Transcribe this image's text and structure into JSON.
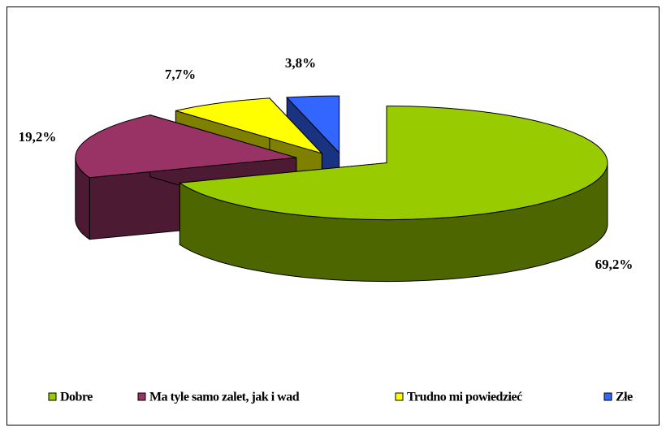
{
  "chart_data": {
    "type": "pie3d",
    "categories": [
      "Dobre",
      "Ma tyle samo zalet, jak i wad",
      "Trudno mi powiedzieć",
      "Złe"
    ],
    "values": [
      69.2,
      19.2,
      7.7,
      3.8
    ],
    "value_labels": [
      "69,2%",
      "19,2%",
      "7,7%",
      "3,8%"
    ],
    "colors": [
      "#99cc00",
      "#993366",
      "#ffff00",
      "#3366ff"
    ],
    "legend": "bottom"
  }
}
